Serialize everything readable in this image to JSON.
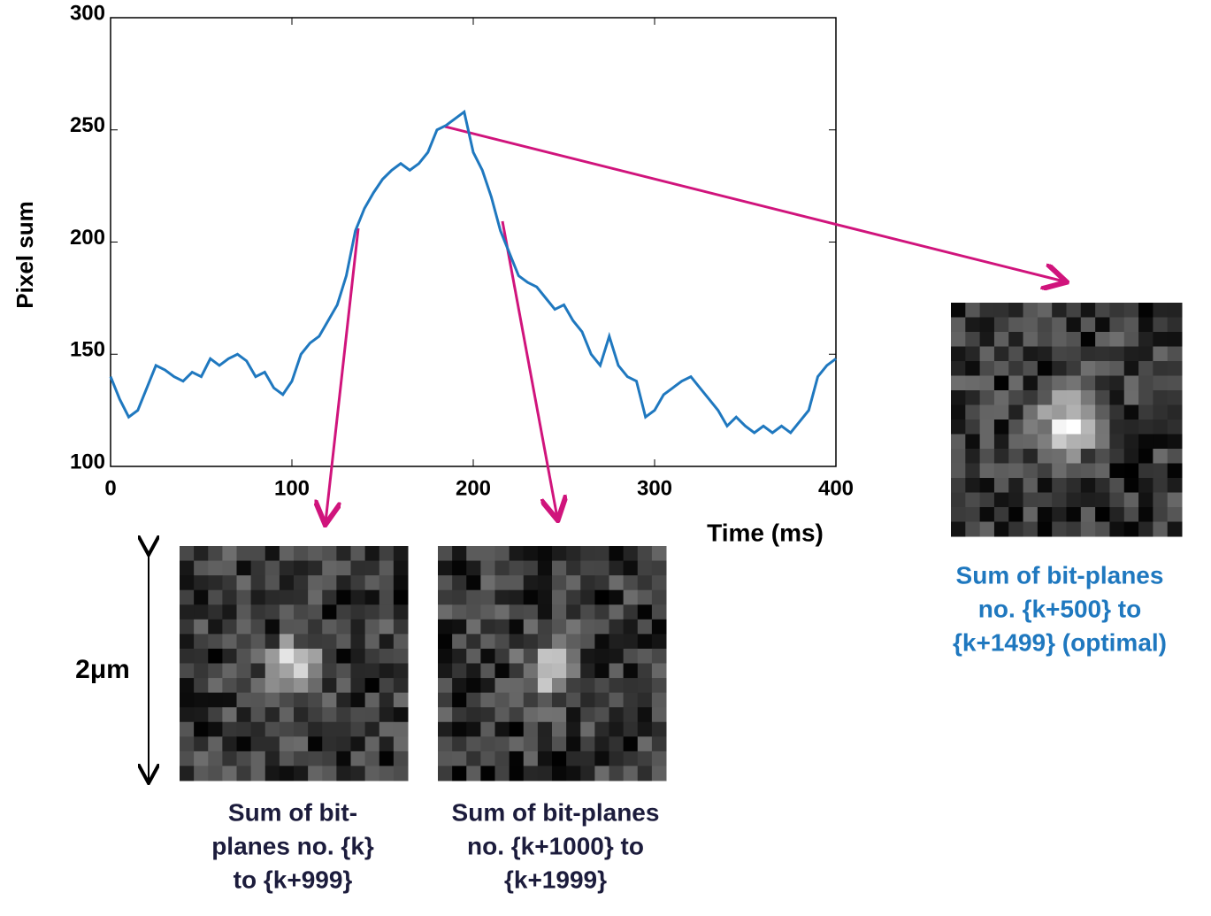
{
  "chart_data": {
    "type": "line",
    "x": [
      0,
      5,
      10,
      15,
      20,
      25,
      30,
      35,
      40,
      45,
      50,
      55,
      60,
      65,
      70,
      75,
      80,
      85,
      90,
      95,
      100,
      105,
      110,
      115,
      120,
      125,
      130,
      135,
      140,
      145,
      150,
      155,
      160,
      165,
      170,
      175,
      180,
      185,
      190,
      195,
      200,
      205,
      210,
      215,
      220,
      225,
      230,
      235,
      240,
      245,
      250,
      255,
      260,
      265,
      270,
      275,
      280,
      285,
      290,
      295,
      300,
      305,
      310,
      315,
      320,
      325,
      330,
      335,
      340,
      345,
      350,
      355,
      360,
      365,
      370,
      375,
      380,
      385,
      390,
      395,
      400
    ],
    "values": [
      140,
      130,
      122,
      125,
      135,
      145,
      143,
      140,
      138,
      142,
      140,
      148,
      145,
      148,
      150,
      147,
      140,
      142,
      135,
      132,
      138,
      150,
      155,
      158,
      165,
      172,
      185,
      205,
      215,
      222,
      228,
      232,
      235,
      232,
      235,
      240,
      250,
      252,
      255,
      258,
      240,
      232,
      220,
      205,
      195,
      185,
      182,
      180,
      175,
      170,
      172,
      165,
      160,
      150,
      145,
      158,
      145,
      140,
      138,
      122,
      125,
      132,
      135,
      138,
      140,
      135,
      130,
      125,
      118,
      122,
      118,
      115,
      118,
      115,
      118,
      115,
      120,
      125,
      140,
      145,
      148
    ],
    "color": "#1f78bf",
    "xlim": [
      0,
      400
    ],
    "xticks": [
      0,
      100,
      200,
      300,
      400
    ],
    "ylim": [
      100,
      300
    ],
    "yticks": [
      100,
      150,
      200,
      250,
      300
    ],
    "xlabel": "Time (ms)",
    "ylabel": "Pixel sum",
    "scale_label": "2μm",
    "captions": [
      [
        "Sum of bit-",
        "planes no. {k}",
        "to {k+999}"
      ],
      [
        "Sum of bit-planes",
        "no. {k+1000} to",
        "{k+1999}"
      ],
      [
        "Sum of bit-planes",
        "no. {k+500} to",
        "{k+1499} (optimal)"
      ]
    ]
  }
}
